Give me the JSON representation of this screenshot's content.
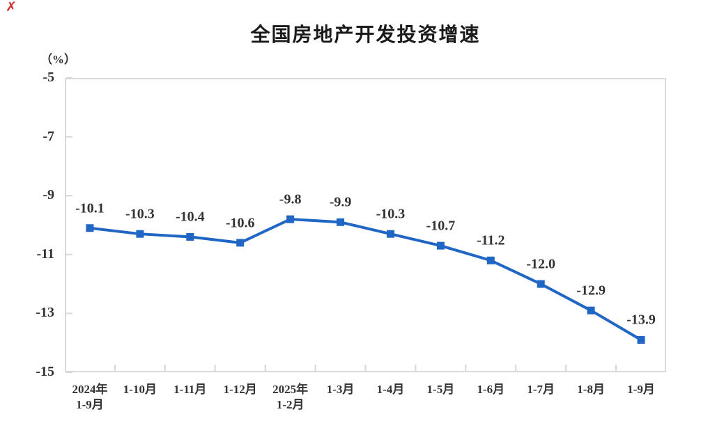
{
  "page": {
    "background": "#ffffff",
    "corner_mark": "✗"
  },
  "chart_data": {
    "type": "line",
    "title": "全国房地产开发投资增速",
    "unit_label": "（%）",
    "categories": [
      "2024年\n1-9月",
      "1-10月",
      "1-11月",
      "1-12月",
      "2025年\n1-2月",
      "1-3月",
      "1-4月",
      "1-5月",
      "1-6月",
      "1-7月",
      "1-8月",
      "1-9月"
    ],
    "values": [
      -10.1,
      -10.3,
      -10.4,
      -10.6,
      -9.8,
      -9.9,
      -10.3,
      -10.7,
      -11.2,
      -12.0,
      -12.9,
      -13.9
    ],
    "data_labels": [
      "-10.1",
      "-10.3",
      "-10.4",
      "-10.6",
      "-9.8",
      "-9.9",
      "-10.3",
      "-10.7",
      "-11.2",
      "-12.0",
      "-12.9",
      "-13.9"
    ],
    "y_ticks": [
      "-5",
      "-7",
      "-9",
      "-11",
      "-13",
      "-15"
    ],
    "ylim": [
      -15,
      -5
    ],
    "xlabel": "",
    "ylabel": "（%）",
    "grid": false,
    "legend": false,
    "line_color": "#2066c4",
    "marker": "square",
    "axis_color": "#d6d6d6",
    "text_color": "#333333"
  }
}
